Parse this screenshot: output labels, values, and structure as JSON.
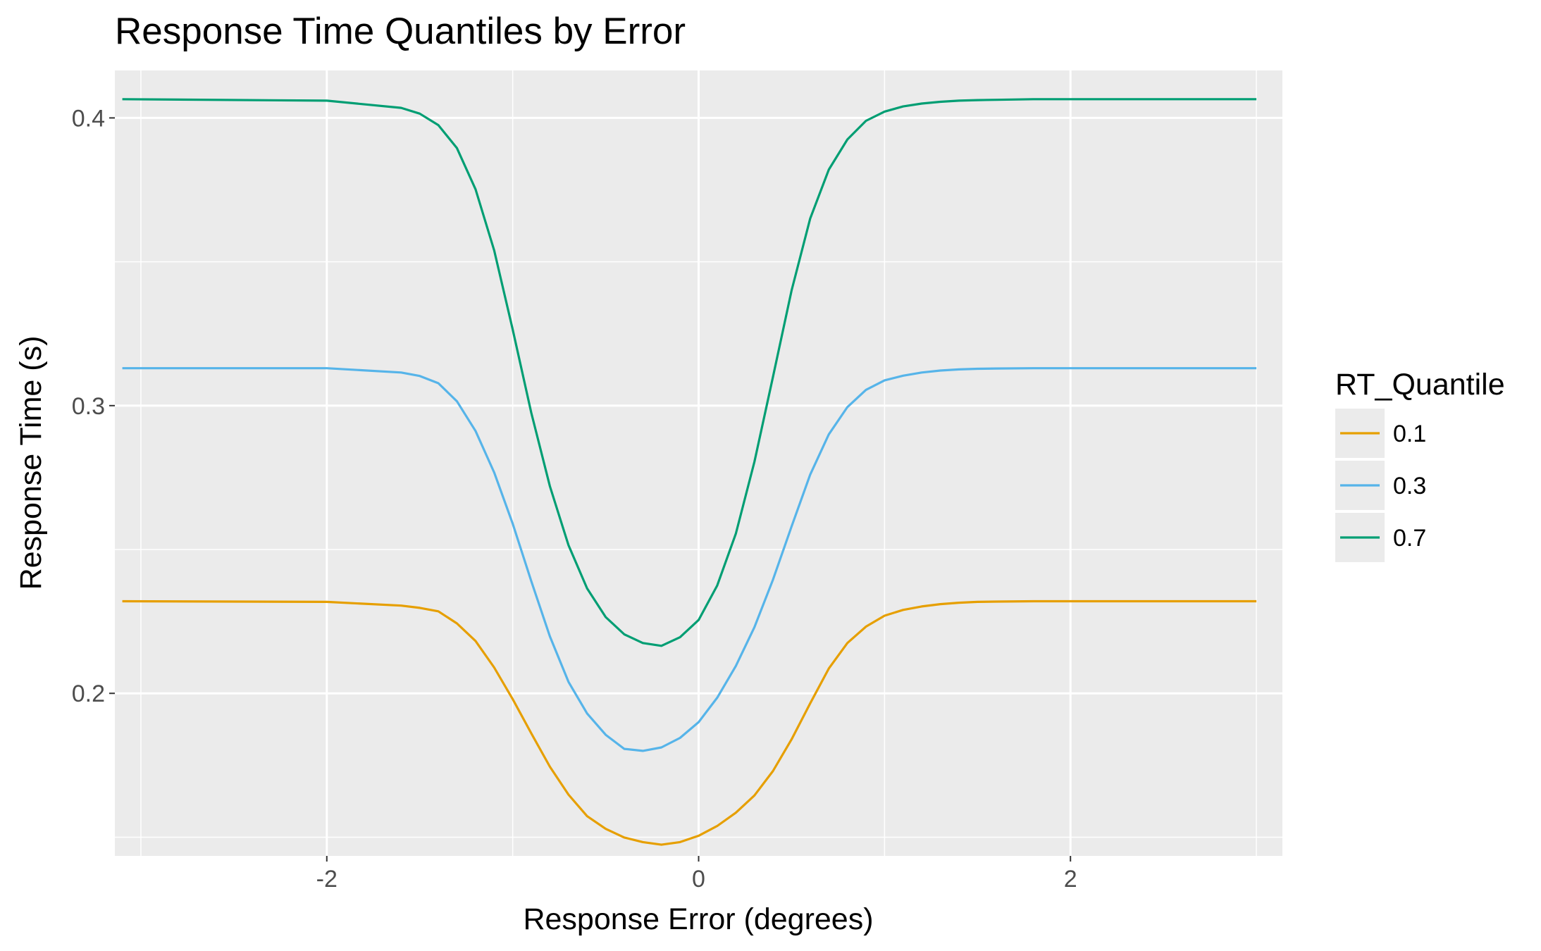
{
  "chart_data": {
    "type": "line",
    "title": "Response Time Quantiles by Error",
    "xlabel": "Response Error (degrees)",
    "ylabel": "Response Time (s)",
    "xlim": [
      -3.14,
      3.14
    ],
    "ylim": [
      0.1435,
      0.4165
    ],
    "x_ticks": [
      {
        "value": -2,
        "label": "-2"
      },
      {
        "value": 0,
        "label": "0"
      },
      {
        "value": 2,
        "label": "2"
      }
    ],
    "y_ticks": [
      {
        "value": 0.2,
        "label": "0.2"
      },
      {
        "value": 0.3,
        "label": "0.3"
      },
      {
        "value": 0.4,
        "label": "0.4"
      }
    ],
    "x_minor_ticks": [
      -3,
      -1,
      1,
      3
    ],
    "y_minor_ticks": [
      0.15,
      0.25,
      0.35
    ],
    "grid": true,
    "background": "#ebebeb",
    "legend": {
      "title": "RT_Quantile",
      "position": "right"
    },
    "series": [
      {
        "name": "0.1",
        "color": "#E69F00",
        "x": [
          -3.1,
          -2.0,
          -1.6,
          -1.5,
          -1.4,
          -1.3,
          -1.2,
          -1.1,
          -1.0,
          -0.9,
          -0.8,
          -0.7,
          -0.6,
          -0.5,
          -0.4,
          -0.3,
          -0.2,
          -0.1,
          0.0,
          0.1,
          0.2,
          0.3,
          0.4,
          0.5,
          0.6,
          0.7,
          0.8,
          0.9,
          1.0,
          1.1,
          1.2,
          1.3,
          1.4,
          1.5,
          1.6,
          1.8,
          2.0,
          3.0
        ],
        "values": [
          0.232,
          0.2318,
          0.2305,
          0.2297,
          0.2285,
          0.2243,
          0.2182,
          0.209,
          0.198,
          0.1861,
          0.1745,
          0.1648,
          0.1573,
          0.1529,
          0.1499,
          0.1483,
          0.1474,
          0.1483,
          0.1505,
          0.1539,
          0.1585,
          0.1645,
          0.173,
          0.184,
          0.1965,
          0.2086,
          0.2175,
          0.2232,
          0.227,
          0.229,
          0.2302,
          0.231,
          0.2315,
          0.2318,
          0.2319,
          0.232,
          0.232,
          0.232
        ]
      },
      {
        "name": "0.3",
        "color": "#56B4E9",
        "x": [
          -3.1,
          -2.0,
          -1.6,
          -1.5,
          -1.4,
          -1.3,
          -1.2,
          -1.1,
          -1.0,
          -0.9,
          -0.8,
          -0.7,
          -0.6,
          -0.5,
          -0.4,
          -0.3,
          -0.2,
          -0.1,
          0.0,
          0.1,
          0.2,
          0.3,
          0.4,
          0.5,
          0.6,
          0.7,
          0.8,
          0.9,
          1.0,
          1.1,
          1.2,
          1.3,
          1.4,
          1.5,
          1.6,
          1.8,
          2.0,
          3.0
        ],
        "values": [
          0.313,
          0.313,
          0.3115,
          0.3103,
          0.3078,
          0.3015,
          0.2912,
          0.2768,
          0.259,
          0.239,
          0.2198,
          0.204,
          0.193,
          0.1856,
          0.1807,
          0.18,
          0.1812,
          0.1845,
          0.19,
          0.1985,
          0.2095,
          0.223,
          0.2395,
          0.258,
          0.276,
          0.29,
          0.2995,
          0.3055,
          0.3088,
          0.3104,
          0.3115,
          0.3122,
          0.3126,
          0.3128,
          0.3129,
          0.313,
          0.313,
          0.313
        ]
      },
      {
        "name": "0.7",
        "color": "#009E73",
        "x": [
          -3.1,
          -2.0,
          -1.6,
          -1.5,
          -1.4,
          -1.3,
          -1.2,
          -1.1,
          -1.0,
          -0.9,
          -0.8,
          -0.7,
          -0.6,
          -0.5,
          -0.4,
          -0.3,
          -0.2,
          -0.1,
          0.0,
          0.1,
          0.2,
          0.3,
          0.4,
          0.5,
          0.6,
          0.7,
          0.8,
          0.9,
          1.0,
          1.1,
          1.2,
          1.3,
          1.4,
          1.5,
          1.6,
          1.8,
          2.0,
          3.0
        ],
        "values": [
          0.4065,
          0.406,
          0.4035,
          0.4015,
          0.3975,
          0.3895,
          0.3752,
          0.354,
          0.3265,
          0.2975,
          0.272,
          0.2515,
          0.2365,
          0.2265,
          0.2205,
          0.2175,
          0.2165,
          0.2195,
          0.2255,
          0.2375,
          0.2555,
          0.2805,
          0.31,
          0.34,
          0.365,
          0.382,
          0.3925,
          0.399,
          0.4022,
          0.404,
          0.405,
          0.4056,
          0.406,
          0.4062,
          0.4063,
          0.4065,
          0.4065,
          0.4065
        ]
      }
    ]
  }
}
